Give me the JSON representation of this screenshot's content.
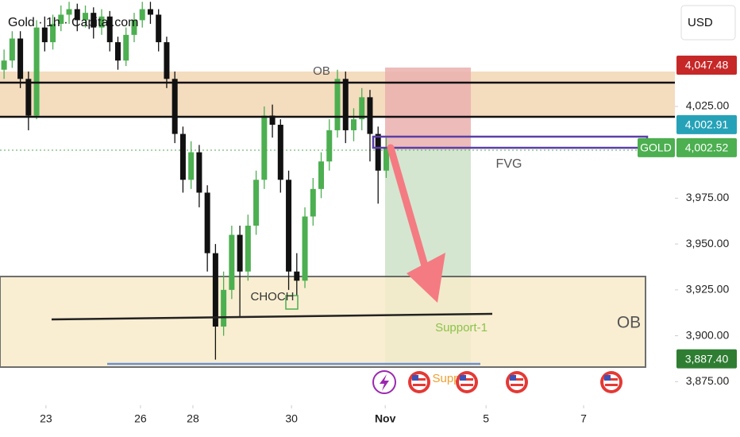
{
  "chart_data": {
    "type": "candlestick",
    "title": "Gold · 1h · Capital.com",
    "currency": "USD",
    "symbol": "GOLD",
    "x": [
      2,
      6,
      10,
      14,
      18,
      22,
      26,
      30,
      34,
      38,
      42,
      46,
      50,
      54,
      58,
      62,
      66,
      70,
      74,
      78,
      82,
      86,
      90,
      94,
      98,
      102,
      106,
      110,
      114,
      118,
      122,
      126,
      130,
      134,
      138,
      142,
      146,
      150,
      154,
      158,
      162,
      166,
      170,
      174,
      178,
      182,
      186,
      190
    ],
    "open": [
      4045,
      4050,
      4062,
      4040,
      4020,
      4068,
      4060,
      4070,
      4075,
      4078,
      4072,
      4076,
      4068,
      4074,
      4060,
      4050,
      4064,
      4072,
      4078,
      4075,
      4060,
      4040,
      4010,
      3985,
      4000,
      3978,
      3945,
      3905,
      3925,
      3955,
      3935,
      3960,
      3985,
      4020,
      4015,
      3985,
      3935,
      3930,
      3965,
      3980,
      3995,
      4012,
      4040,
      4012,
      4018,
      4030,
      4010,
      3990
    ],
    "high": [
      4056,
      4066,
      4066,
      4044,
      4072,
      4074,
      4075,
      4080,
      4082,
      4081,
      4080,
      4079,
      4078,
      4077,
      4063,
      4068,
      4076,
      4082,
      4082,
      4078,
      4063,
      4044,
      4014,
      4006,
      4004,
      3982,
      3950,
      3935,
      3960,
      3960,
      3966,
      3990,
      4025,
      4026,
      4018,
      3990,
      3945,
      3970,
      3986,
      4000,
      4018,
      4045,
      4044,
      4024,
      4035,
      4034,
      4014,
      4008
    ],
    "low": [
      4040,
      4046,
      4035,
      4012,
      4018,
      4055,
      4056,
      4066,
      4070,
      4066,
      4068,
      4062,
      4064,
      4055,
      4045,
      4047,
      4060,
      4068,
      4070,
      4055,
      4035,
      4005,
      3978,
      3980,
      3970,
      3935,
      3887,
      3900,
      3920,
      3910,
      3930,
      3955,
      3980,
      4008,
      3978,
      3925,
      3922,
      3926,
      3960,
      3975,
      3990,
      4008,
      4005,
      4006,
      4012,
      3995,
      3972,
      3986
    ],
    "close": [
      4050,
      4062,
      4040,
      4020,
      4068,
      4060,
      4070,
      4075,
      4078,
      4072,
      4076,
      4068,
      4074,
      4060,
      4050,
      4064,
      4072,
      4078,
      4075,
      4060,
      4040,
      4010,
      3985,
      4000,
      3978,
      3945,
      3905,
      3925,
      3955,
      3935,
      3960,
      3985,
      4020,
      4015,
      3985,
      3935,
      3930,
      3965,
      3980,
      3995,
      4012,
      4040,
      4012,
      4018,
      4030,
      4010,
      3990,
      4002.52
    ],
    "up_color": "#4caf50",
    "down_color": "#111111",
    "xlim": [
      0,
      332
    ],
    "xticks": [
      {
        "value": 22.6,
        "label": "23"
      },
      {
        "value": 69.1,
        "label": "26"
      },
      {
        "value": 94.9,
        "label": "28"
      },
      {
        "value": 143.4,
        "label": "30"
      },
      {
        "value": 189.5,
        "label": "Nov"
      },
      {
        "value": 239.1,
        "label": "5"
      },
      {
        "value": 287.1,
        "label": "7"
      }
    ],
    "ylim": [
      3863,
      4083
    ],
    "yticks": [
      {
        "value": 3875,
        "label": "3,875.00"
      },
      {
        "value": 3900,
        "label": "3,900.00"
      },
      {
        "value": 3925,
        "label": "3,925.00"
      },
      {
        "value": 3950,
        "label": "3,950.00"
      },
      {
        "value": 3975,
        "label": "3,975.00"
      },
      {
        "value": 4025,
        "label": "4,025.00"
      }
    ],
    "price_labels": [
      {
        "value": 4047.48,
        "label": "4,047.48",
        "color": "#c62828"
      },
      {
        "value": 4002.91,
        "label": "4,002.91",
        "color": "#26a2b8"
      },
      {
        "value": 4002.52,
        "label": "4,002.52",
        "color": "#4caf50"
      },
      {
        "value": 3887.4,
        "label": "3,887.40",
        "color": "#2e7d32"
      }
    ],
    "annotations": [
      "OB",
      "FVG",
      "CHOCH",
      "Support-1",
      "OB",
      "Supp"
    ]
  }
}
